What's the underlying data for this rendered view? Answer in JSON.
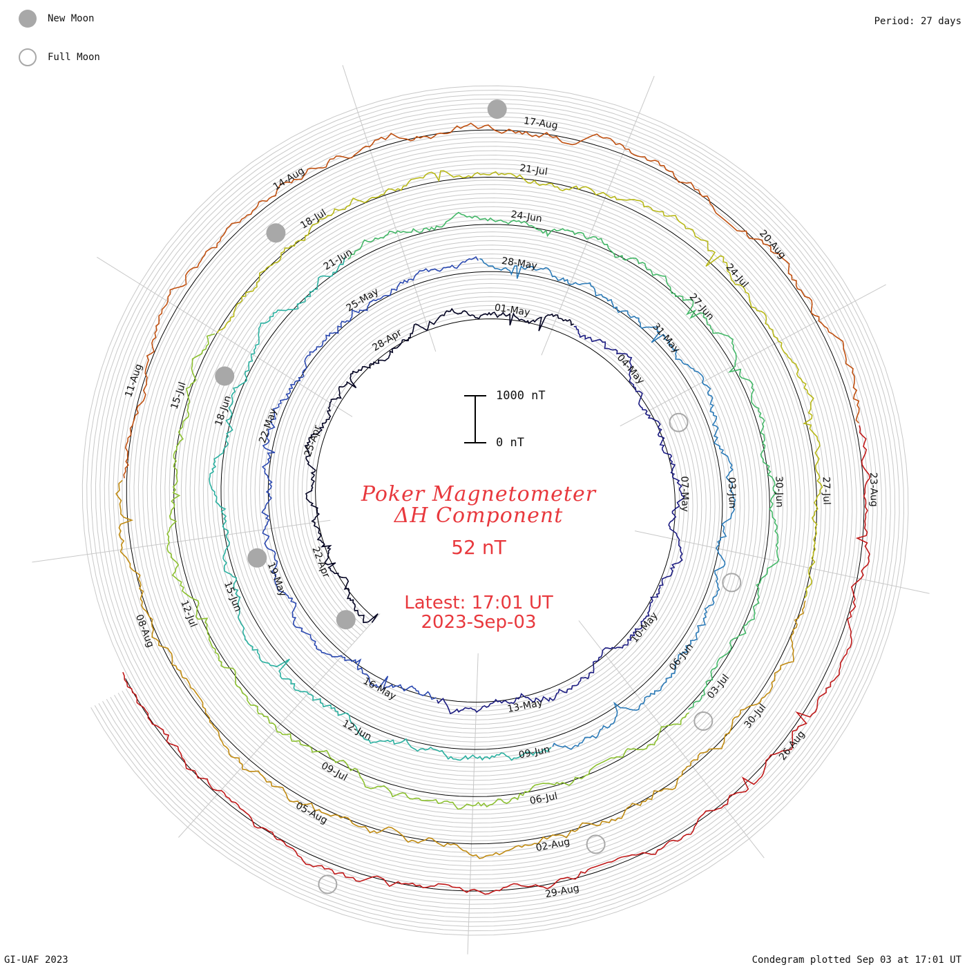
{
  "legend": {
    "new_moon_label": "New Moon",
    "full_moon_label": "Full Moon"
  },
  "header": {
    "period_label": "Period: 27 days"
  },
  "footer": {
    "credit": "GI-UAF 2023",
    "plotted": "Condegram plotted Sep 03 at 17:01 UT"
  },
  "title": {
    "line1": "Poker Magnetometer",
    "line2": "ΔH Component",
    "value": "52 nT",
    "latest": "Latest: 17:01 UT",
    "date": "2023-Sep-03"
  },
  "scale": {
    "top_label": "1000 nT",
    "bottom_label": "0 nT"
  },
  "colors": {
    "moon_gray": "#a8a8a8",
    "title_red": "#e8383d",
    "grid": "#c8c8c8",
    "baseline": "#000000"
  },
  "chart_data": {
    "type": "line",
    "layout": "spiral condegram",
    "period_days": 27,
    "start_date": "2023-04-20",
    "end": "2023-09-03 17:01 UT",
    "units": "nT",
    "scale_bar_nT": [
      0,
      1000
    ],
    "date_labels": [
      {
        "label": "22-Apr",
        "day": 2
      },
      {
        "label": "25-Apr",
        "day": 5
      },
      {
        "label": "28-Apr",
        "day": 8
      },
      {
        "label": "01-May",
        "day": 11
      },
      {
        "label": "04-May",
        "day": 14
      },
      {
        "label": "07-May",
        "day": 17
      },
      {
        "label": "10-May",
        "day": 20
      },
      {
        "label": "13-May",
        "day": 23
      },
      {
        "label": "16-May",
        "day": 26
      },
      {
        "label": "19-May",
        "day": 29
      },
      {
        "label": "22-May",
        "day": 32
      },
      {
        "label": "25-May",
        "day": 35
      },
      {
        "label": "28-May",
        "day": 38
      },
      {
        "label": "31-May",
        "day": 41
      },
      {
        "label": "03-Jun",
        "day": 44
      },
      {
        "label": "06-Jun",
        "day": 47
      },
      {
        "label": "09-Jun",
        "day": 50
      },
      {
        "label": "12-Jun",
        "day": 53
      },
      {
        "label": "15-Jun",
        "day": 56
      },
      {
        "label": "18-Jun",
        "day": 59
      },
      {
        "label": "21-Jun",
        "day": 62
      },
      {
        "label": "24-Jun",
        "day": 65
      },
      {
        "label": "27-Jun",
        "day": 68
      },
      {
        "label": "30-Jun",
        "day": 71
      },
      {
        "label": "03-Jul",
        "day": 74
      },
      {
        "label": "06-Jul",
        "day": 77
      },
      {
        "label": "09-Jul",
        "day": 80
      },
      {
        "label": "12-Jul",
        "day": 83
      },
      {
        "label": "15-Jul",
        "day": 86
      },
      {
        "label": "18-Jul",
        "day": 89
      },
      {
        "label": "21-Jul",
        "day": 92
      },
      {
        "label": "24-Jul",
        "day": 95
      },
      {
        "label": "27-Jul",
        "day": 98
      },
      {
        "label": "30-Jul",
        "day": 101
      },
      {
        "label": "02-Aug",
        "day": 104
      },
      {
        "label": "05-Aug",
        "day": 107
      },
      {
        "label": "08-Aug",
        "day": 110
      },
      {
        "label": "11-Aug",
        "day": 113
      },
      {
        "label": "14-Aug",
        "day": 116
      },
      {
        "label": "17-Aug",
        "day": 119
      },
      {
        "label": "20-Aug",
        "day": 122
      },
      {
        "label": "23-Aug",
        "day": 125
      },
      {
        "label": "26-Aug",
        "day": 128
      },
      {
        "label": "29-Aug",
        "day": 131
      }
    ],
    "new_moons": [
      "2023-04-20",
      "2023-05-19",
      "2023-06-18",
      "2023-07-17",
      "2023-08-16"
    ],
    "full_moons": [
      "2023-05-05",
      "2023-06-04",
      "2023-07-03",
      "2023-08-01",
      "2023-08-31"
    ],
    "series_colors": [
      "#000020",
      "#1a1a80",
      "#2a48b0",
      "#2a7ab8",
      "#2ab0a0",
      "#44b868",
      "#8cc030",
      "#b8b818",
      "#c08a10",
      "#c05010",
      "#c01818"
    ]
  }
}
